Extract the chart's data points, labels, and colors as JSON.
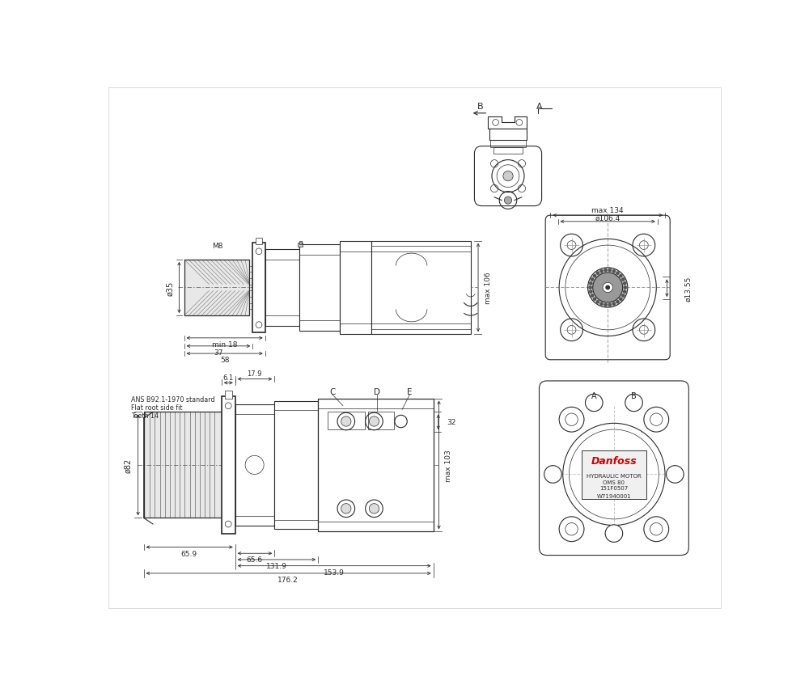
{
  "background_color": "#ffffff",
  "line_color": "#2a2a2a",
  "fig_width": 10.0,
  "fig_height": 8.53,
  "annotations": {
    "phi35": "ø35",
    "M8": "M8",
    "min18": "min 18",
    "dim37": "37",
    "dim58": "58",
    "max106": "max 106",
    "phi106_4": "ø106.4",
    "max134": "max 134",
    "phi13_55": "ø13.55",
    "dim6_1": "6.1",
    "dim17_9": "17.9",
    "dim32": "32",
    "max103": "max 103",
    "dim65_9": "65.9",
    "dim65_6": "65.6",
    "dim131_9": "131.9",
    "dim153_9": "153.9",
    "dim176_2": "176.2",
    "phi82": "ø82",
    "ANS_text": "ANS B92.1-1970 standard\nFlat root side fit\nTeeth 14",
    "label_C": "C",
    "label_D": "D",
    "label_E": "E",
    "label_A_top": "A",
    "label_B_top": "B",
    "label_A_back": "A",
    "label_B_back": "B",
    "danfoss_label": "Danfoss",
    "motor_line1": "HYDRAULIC MOTOR",
    "motor_line2": "OMS 80",
    "motor_line3": "151F0507",
    "serial": "W71940001"
  }
}
